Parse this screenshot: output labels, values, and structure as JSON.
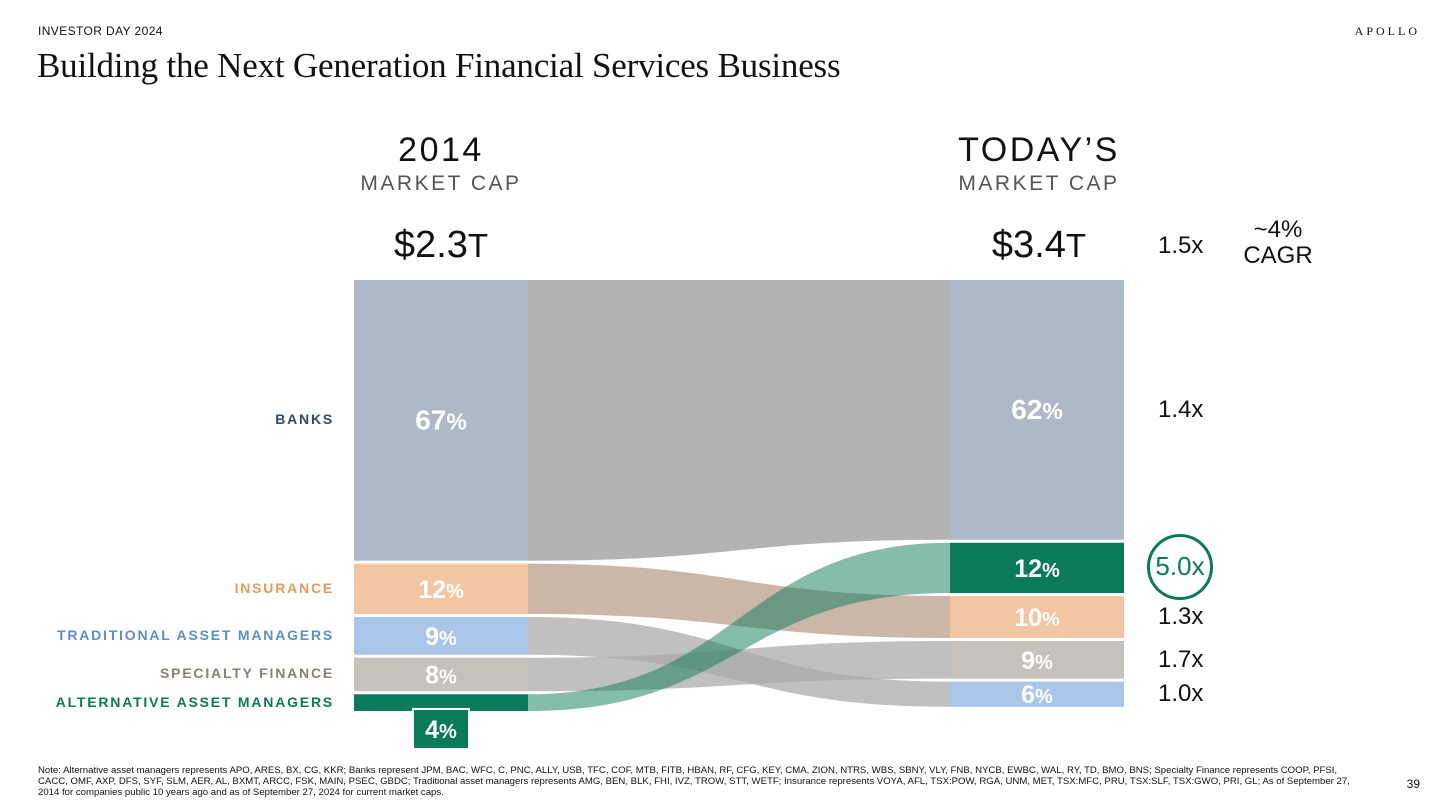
{
  "header": {
    "event": "INVESTOR DAY 2024",
    "brand": "APOLLO",
    "title": "Building the Next Generation Financial Services Business"
  },
  "columns": {
    "left": {
      "year": "2014",
      "subtitle": "MARKET CAP",
      "total_num": "$2.3",
      "total_unit": "T"
    },
    "right": {
      "year": "TODAY’S",
      "subtitle": "MARKET CAP",
      "total_num": "$3.4",
      "total_unit": "T"
    }
  },
  "total_multiple": "1.5x",
  "cagr": {
    "value": "~4%",
    "label": "CAGR"
  },
  "colors": {
    "banks": "#aeb9c8",
    "insurance": "#f3c6a3",
    "traditional": "#a9c6e8",
    "specialty": "#c6c1bb",
    "alternative": "#0b7a5a",
    "flow": "#a8a8a8"
  },
  "chart_data": {
    "type": "sankey",
    "units": "% of total market cap",
    "categories": [
      {
        "key": "banks",
        "label": "BANKS",
        "label_color": "#2e4a6b",
        "y2014": 67,
        "today": 62,
        "multiple": "1.4x",
        "highlight": false
      },
      {
        "key": "insurance",
        "label": "INSURANCE",
        "label_color": "#e59a5c",
        "y2014": 12,
        "today": 10,
        "multiple": "1.3x",
        "highlight": false
      },
      {
        "key": "traditional",
        "label": "TRADITIONAL ASSET MANAGERS",
        "label_color": "#5b8fc7",
        "y2014": 9,
        "today": 6,
        "multiple": "1.0x",
        "highlight": false
      },
      {
        "key": "specialty",
        "label": "SPECIALTY FINANCE",
        "label_color": "#8a7f74",
        "y2014": 8,
        "today": 9,
        "multiple": "1.7x",
        "highlight": false
      },
      {
        "key": "alternative",
        "label": "ALTERNATIVE ASSET MANAGERS",
        "label_color": "#0b7a5a",
        "y2014": 4,
        "today": 12,
        "multiple": "5.0x",
        "highlight": true
      }
    ],
    "order_2014": [
      "banks",
      "insurance",
      "traditional",
      "specialty",
      "alternative"
    ],
    "order_today": [
      "banks",
      "alternative",
      "insurance",
      "specialty",
      "traditional"
    ],
    "pct_suffix": "%"
  },
  "footer": {
    "note": "Note: Alternative asset managers represents APO, ARES, BX, CG, KKR; Banks represent JPM, BAC, WFC, C, PNC, ALLY, USB, TFC, COF, MTB, FITB, HBAN, RF, CFG, KEY, CMA, ZION, NTRS, WBS, SBNY, VLY, FNB, NYCB, EWBC, WAL, RY, TD, BMO, BNS; Specialty Finance represents COOP, PFSI, CACC, OMF, AXP, DFS, SYF, SLM, AER, AL, BXMT, ARCC, FSK, MAIN, PSEC, GBDC; Traditional asset managers represents AMG, BEN, BLK, FHI, IVZ, TROW, STT, WETF; Insurance represents VOYA, AFL, TSX:POW, RGA, UNM, MET, TSX:MFC, PRU, TSX:SLF, TSX:GWO, PRI, GL; As of September 27, 2014 for companies public 10 years ago and as of September 27, 2024 for current market caps.",
    "page_number": "39"
  }
}
